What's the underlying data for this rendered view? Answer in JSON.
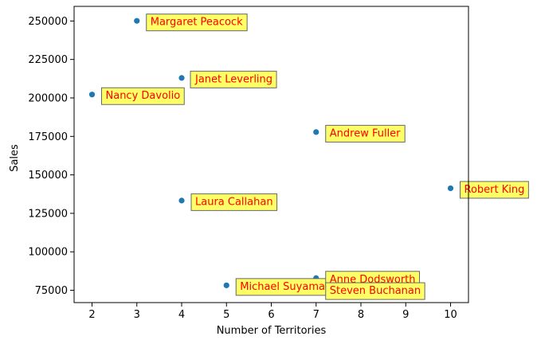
{
  "chart_data": {
    "type": "scatter",
    "title": "",
    "xlabel": "Number of Territories",
    "ylabel": "Sales",
    "xlim": [
      1.6,
      10.4
    ],
    "ylim": [
      67000,
      259500
    ],
    "x_ticks": [
      2,
      3,
      4,
      5,
      6,
      7,
      8,
      9,
      10
    ],
    "y_ticks": [
      75000,
      100000,
      125000,
      150000,
      175000,
      200000,
      225000,
      250000
    ],
    "grid": false,
    "point_color": "#1f77b4",
    "annotation_style": {
      "text_color": "#ff0000",
      "box_fill": "#ffff66",
      "box_edge": "#666666"
    },
    "points": [
      {
        "label": "Margaret Peacock",
        "x": 3,
        "y": 250100
      },
      {
        "label": "Janet Leverling",
        "x": 4,
        "y": 213000
      },
      {
        "label": "Nancy Davolio",
        "x": 2,
        "y": 202200
      },
      {
        "label": "Andrew Fuller",
        "x": 7,
        "y": 177800
      },
      {
        "label": "Robert King",
        "x": 10,
        "y": 141300
      },
      {
        "label": "Laura Callahan",
        "x": 4,
        "y": 133300
      },
      {
        "label": "Michael Suyama",
        "x": 5,
        "y": 78200
      },
      {
        "label": "Anne Dodsworth",
        "x": 7,
        "y": 82900
      },
      {
        "label": "Steven Buchanan",
        "x": 7,
        "y": 75500
      }
    ]
  }
}
